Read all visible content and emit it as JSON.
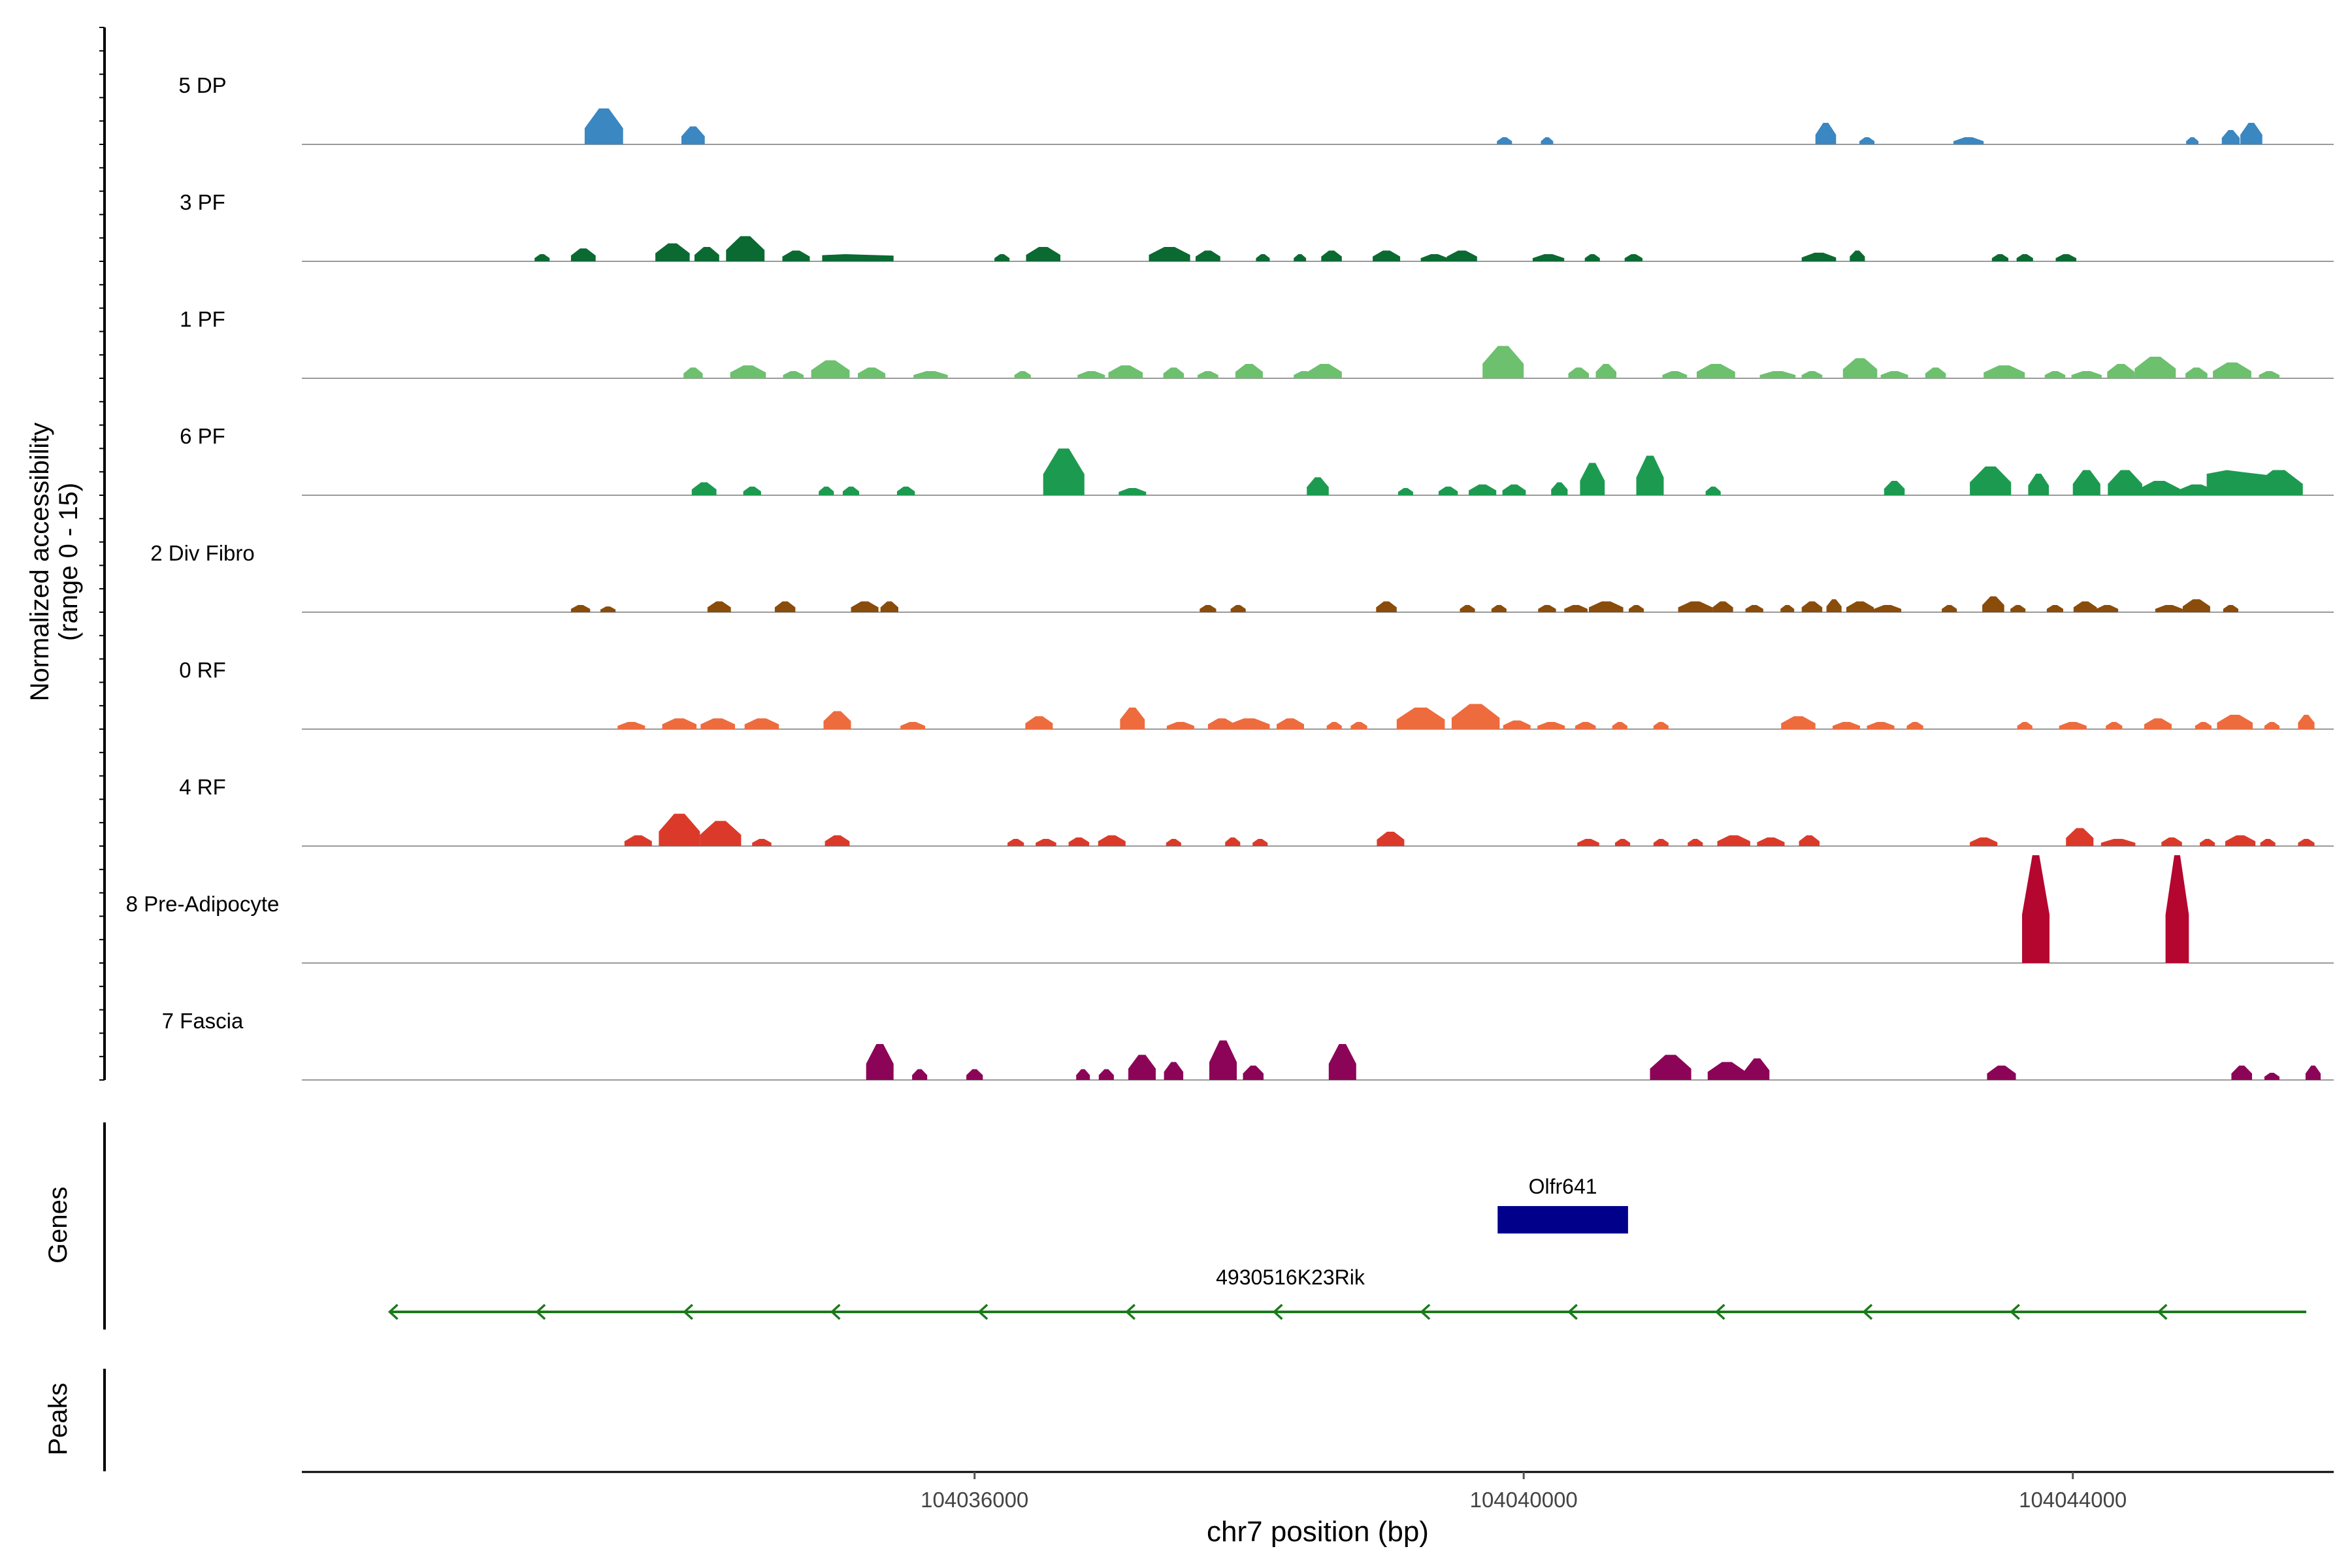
{
  "chart_data": {
    "type": "area",
    "genome_region": {
      "chromosome": "chr7",
      "start": 104031100,
      "end": 104045900
    },
    "x_axis": {
      "label": "chr7 position (bp)",
      "ticks": [
        104036000,
        104040000,
        104044000
      ],
      "tick_labels": [
        "104036000",
        "104040000",
        "104044000"
      ]
    },
    "y_axis": {
      "label_line1": "Normalized accessibility",
      "label_line2": "(range 0 - 15)",
      "range": [
        0,
        15
      ]
    },
    "tracks": [
      {
        "name": "5 DP",
        "color": "#3a87c2",
        "peaks": [
          [
            104033300,
            5,
            280
          ],
          [
            104033950,
            2.5,
            170
          ],
          [
            104039860,
            1,
            110
          ],
          [
            104040170,
            1,
            90
          ],
          [
            104042200,
            3,
            150
          ],
          [
            104042500,
            1,
            110
          ],
          [
            104043240,
            1,
            220
          ],
          [
            104044870,
            1,
            90
          ],
          [
            104045150,
            2,
            130
          ],
          [
            104045300,
            3,
            160
          ]
        ]
      },
      {
        "name": "3 PF",
        "color": "#0b6a32",
        "peaks": [
          [
            104032850,
            1,
            110
          ],
          [
            104033150,
            1.8,
            180
          ],
          [
            104033800,
            2.5,
            250
          ],
          [
            104034050,
            2,
            180
          ],
          [
            104034330,
            3.5,
            280
          ],
          [
            104034700,
            1.5,
            200
          ],
          [
            104035150,
            1,
            520
          ],
          [
            104036200,
            1,
            110
          ],
          [
            104036500,
            2,
            250
          ],
          [
            104037420,
            2,
            300
          ],
          [
            104037700,
            1.5,
            180
          ],
          [
            104038100,
            1,
            100
          ],
          [
            104038370,
            1,
            90
          ],
          [
            104038600,
            1.5,
            150
          ],
          [
            104039000,
            1.5,
            200
          ],
          [
            104039350,
            1,
            200
          ],
          [
            104039550,
            1.5,
            220
          ],
          [
            104040180,
            1,
            230
          ],
          [
            104040500,
            1,
            110
          ],
          [
            104040800,
            1,
            130
          ],
          [
            104042150,
            1.2,
            250
          ],
          [
            104042430,
            1.5,
            110
          ],
          [
            104043470,
            1,
            120
          ],
          [
            104043650,
            1,
            120
          ],
          [
            104043950,
            1,
            150
          ]
        ]
      },
      {
        "name": "1 PF",
        "color": "#6cc06e",
        "peaks": [
          [
            104033950,
            1.5,
            140
          ],
          [
            104034350,
            1.8,
            260
          ],
          [
            104034680,
            1,
            150
          ],
          [
            104034950,
            2.5,
            280
          ],
          [
            104035250,
            1.5,
            200
          ],
          [
            104035680,
            1,
            250
          ],
          [
            104036350,
            1,
            120
          ],
          [
            104036850,
            1,
            200
          ],
          [
            104037100,
            1.8,
            250
          ],
          [
            104037450,
            1.5,
            150
          ],
          [
            104037700,
            1,
            150
          ],
          [
            104038000,
            2,
            200
          ],
          [
            104038400,
            1,
            150
          ],
          [
            104038550,
            2,
            250
          ],
          [
            104039850,
            4.5,
            300
          ],
          [
            104040400,
            1.5,
            150
          ],
          [
            104040600,
            2,
            150
          ],
          [
            104041100,
            1,
            180
          ],
          [
            104041400,
            2,
            280
          ],
          [
            104041850,
            1,
            260
          ],
          [
            104042100,
            1,
            150
          ],
          [
            104042450,
            2.8,
            250
          ],
          [
            104042700,
            1,
            200
          ],
          [
            104043000,
            1.5,
            150
          ],
          [
            104043500,
            1.8,
            300
          ],
          [
            104043870,
            1,
            150
          ],
          [
            104044100,
            1,
            220
          ],
          [
            104044350,
            2,
            200
          ],
          [
            104044600,
            3,
            300
          ],
          [
            104044900,
            1.5,
            160
          ],
          [
            104045160,
            2.2,
            280
          ],
          [
            104045430,
            1,
            150
          ]
        ]
      },
      {
        "name": "6 PF",
        "color": "#1c9b50",
        "peaks": [
          [
            104034030,
            1.8,
            180
          ],
          [
            104034380,
            1.2,
            130
          ],
          [
            104034920,
            1.2,
            110
          ],
          [
            104035100,
            1.2,
            120
          ],
          [
            104035500,
            1.2,
            130
          ],
          [
            104036650,
            6.5,
            300
          ],
          [
            104037150,
            1,
            200
          ],
          [
            104038500,
            2.5,
            160
          ],
          [
            104039140,
            1,
            110
          ],
          [
            104039450,
            1.2,
            140
          ],
          [
            104039700,
            1.5,
            200
          ],
          [
            104039930,
            1.5,
            170
          ],
          [
            104040260,
            1.8,
            120
          ],
          [
            104040500,
            4.5,
            180
          ],
          [
            104040920,
            5.5,
            200
          ],
          [
            104041380,
            1.2,
            110
          ],
          [
            104042700,
            2,
            150
          ],
          [
            104043400,
            4,
            300
          ],
          [
            104043750,
            3,
            150
          ],
          [
            104044100,
            3.5,
            200
          ],
          [
            104044380,
            3.5,
            250
          ],
          [
            104044630,
            2,
            300
          ],
          [
            104044900,
            1.5,
            280
          ],
          [
            104045200,
            3.5,
            450
          ],
          [
            104045500,
            3.5,
            350
          ]
        ]
      },
      {
        "name": "2 Div Fibro",
        "color": "#8a4c0a",
        "peaks": [
          [
            104033130,
            1,
            140
          ],
          [
            104033330,
            0.8,
            110
          ],
          [
            104034140,
            1.5,
            170
          ],
          [
            104034620,
            1.5,
            150
          ],
          [
            104035200,
            1.5,
            200
          ],
          [
            104035380,
            1.5,
            130
          ],
          [
            104037700,
            1,
            120
          ],
          [
            104037920,
            1,
            110
          ],
          [
            104039000,
            1.5,
            150
          ],
          [
            104039590,
            1,
            110
          ],
          [
            104039820,
            1,
            110
          ],
          [
            104040170,
            1,
            130
          ],
          [
            104040380,
            1,
            170
          ],
          [
            104040600,
            1.5,
            250
          ],
          [
            104040820,
            1,
            110
          ],
          [
            104041250,
            1.5,
            250
          ],
          [
            104041450,
            1.5,
            150
          ],
          [
            104041680,
            1,
            130
          ],
          [
            104041920,
            1,
            100
          ],
          [
            104042100,
            1.5,
            150
          ],
          [
            104042260,
            1.8,
            110
          ],
          [
            104042450,
            1.5,
            200
          ],
          [
            104042650,
            1,
            200
          ],
          [
            104043100,
            1,
            110
          ],
          [
            104043420,
            2.2,
            160
          ],
          [
            104043600,
            1,
            110
          ],
          [
            104043870,
            1,
            120
          ],
          [
            104044090,
            1.5,
            170
          ],
          [
            104044250,
            1,
            160
          ],
          [
            104044700,
            1,
            200
          ],
          [
            104044900,
            1.8,
            200
          ],
          [
            104045150,
            1,
            110
          ]
        ]
      },
      {
        "name": "0 RF",
        "color": "#ee6b3d",
        "peaks": [
          [
            104033500,
            1,
            200
          ],
          [
            104033850,
            1.5,
            250
          ],
          [
            104034130,
            1.5,
            250
          ],
          [
            104034450,
            1.5,
            250
          ],
          [
            104035000,
            2.5,
            200
          ],
          [
            104035550,
            1,
            180
          ],
          [
            104036470,
            1.8,
            200
          ],
          [
            104037150,
            3,
            180
          ],
          [
            104037500,
            1,
            200
          ],
          [
            104037800,
            1.5,
            200
          ],
          [
            104038000,
            1.5,
            300
          ],
          [
            104038300,
            1.5,
            200
          ],
          [
            104038620,
            1,
            110
          ],
          [
            104038800,
            1,
            120
          ],
          [
            104039250,
            3,
            350
          ],
          [
            104039650,
            3.5,
            350
          ],
          [
            104039950,
            1.2,
            200
          ],
          [
            104040200,
            1,
            200
          ],
          [
            104040450,
            1,
            150
          ],
          [
            104040700,
            1,
            110
          ],
          [
            104041000,
            1,
            110
          ],
          [
            104042000,
            1.8,
            250
          ],
          [
            104042350,
            1,
            200
          ],
          [
            104042600,
            1,
            200
          ],
          [
            104042850,
            1,
            120
          ],
          [
            104043650,
            1,
            110
          ],
          [
            104044000,
            1,
            200
          ],
          [
            104044300,
            1,
            120
          ],
          [
            104044620,
            1.5,
            200
          ],
          [
            104044950,
            1,
            120
          ],
          [
            104045180,
            2,
            260
          ],
          [
            104045450,
            1,
            110
          ],
          [
            104045700,
            2,
            120
          ]
        ]
      },
      {
        "name": "4 RF",
        "color": "#db3a2a",
        "peaks": [
          [
            104033550,
            1.5,
            200
          ],
          [
            104033850,
            4.5,
            300
          ],
          [
            104034150,
            3.5,
            300
          ],
          [
            104034450,
            1,
            140
          ],
          [
            104035000,
            1.5,
            180
          ],
          [
            104036300,
            1,
            120
          ],
          [
            104036520,
            1,
            150
          ],
          [
            104036760,
            1.2,
            150
          ],
          [
            104037000,
            1.5,
            200
          ],
          [
            104037450,
            1,
            110
          ],
          [
            104037880,
            1.2,
            110
          ],
          [
            104038080,
            1,
            110
          ],
          [
            104039030,
            2,
            200
          ],
          [
            104040470,
            1,
            160
          ],
          [
            104040720,
            1,
            110
          ],
          [
            104041000,
            1,
            110
          ],
          [
            104041250,
            1,
            110
          ],
          [
            104041530,
            1.5,
            240
          ],
          [
            104041800,
            1.2,
            200
          ],
          [
            104042080,
            1.5,
            150
          ],
          [
            104043350,
            1.2,
            200
          ],
          [
            104044050,
            2.5,
            200
          ],
          [
            104044330,
            1,
            250
          ],
          [
            104044720,
            1.2,
            150
          ],
          [
            104044980,
            1,
            110
          ],
          [
            104045220,
            1.5,
            220
          ],
          [
            104045420,
            1,
            110
          ],
          [
            104045700,
            1,
            120
          ]
        ]
      },
      {
        "name": "8 Pre-Adipocyte",
        "color": "#b5062f",
        "peaks": [
          [
            104043730,
            15,
            200
          ],
          [
            104044760,
            15,
            170
          ]
        ]
      },
      {
        "name": "7 Fascia",
        "color": "#8c0458",
        "peaks": [
          [
            104035310,
            5,
            200
          ],
          [
            104035600,
            1.5,
            110
          ],
          [
            104036000,
            1.5,
            120
          ],
          [
            104036790,
            1.5,
            100
          ],
          [
            104036960,
            1.5,
            110
          ],
          [
            104037220,
            3.5,
            200
          ],
          [
            104037450,
            2.5,
            140
          ],
          [
            104037810,
            5.5,
            200
          ],
          [
            104038030,
            2,
            150
          ],
          [
            104038680,
            5,
            200
          ],
          [
            104041070,
            3.5,
            300
          ],
          [
            104041480,
            2.5,
            280
          ],
          [
            104041700,
            3,
            180
          ],
          [
            104043480,
            2,
            210
          ],
          [
            104045230,
            2,
            150
          ],
          [
            104045450,
            1,
            110
          ],
          [
            104045750,
            2,
            110
          ]
        ]
      }
    ],
    "genes": [
      {
        "name": "Olfr641",
        "start": 104039810,
        "end": 104040760,
        "strand": "+",
        "color": "#00008b"
      },
      {
        "name": "4930516K23Rik",
        "start": 104031740,
        "end": 104045700,
        "strand": "-",
        "color": "#1a7a1a"
      }
    ],
    "gene_track_label": "Genes",
    "peaks_track_label": "Peaks",
    "grid": false
  }
}
